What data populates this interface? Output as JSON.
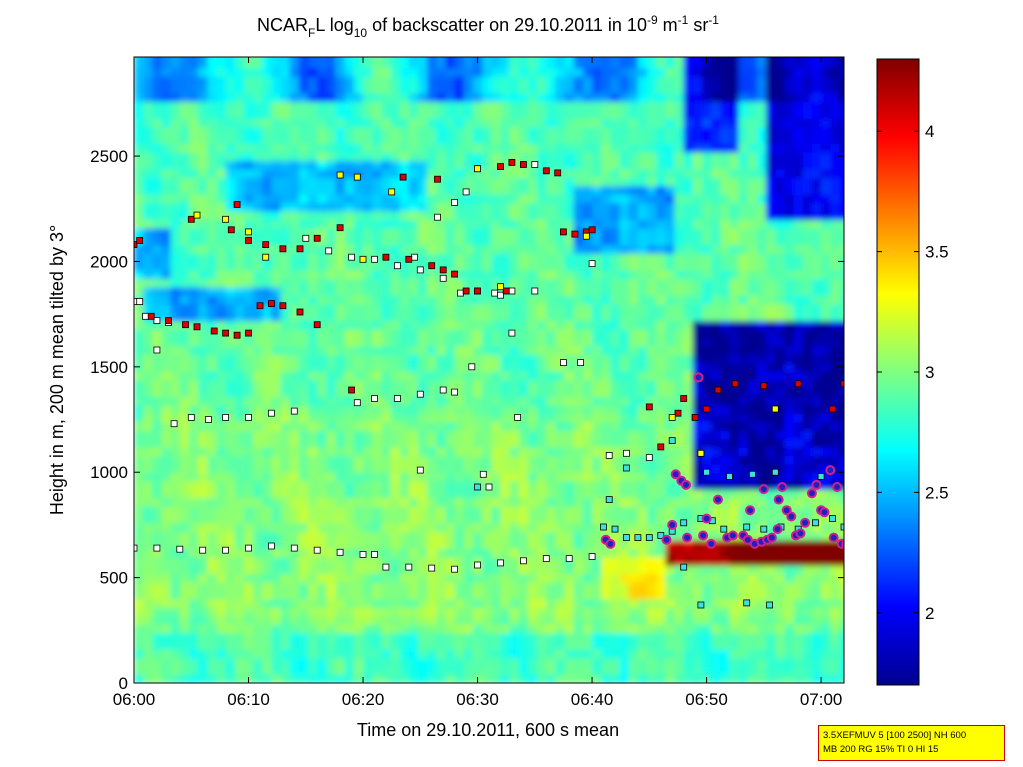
{
  "chart_data": {
    "type": "heatmap",
    "title": {
      "part1": "NCAR",
      "sub1": "F",
      "part2": "L log",
      "sub2": "10",
      "part3": " of backscatter on 29.10.2011 in 10",
      "sup1": "-9",
      "part4": " m",
      "sup2": "-1",
      "part5": " sr",
      "sup3": "-1"
    },
    "xlabel": "Time on 29.10.2011, 600 s mean",
    "ylabel": "Height in m, 200 m mean tilted by 3°",
    "x_ticks": [
      "06:00",
      "06:10",
      "06:20",
      "06:30",
      "06:40",
      "06:50",
      "07:00"
    ],
    "x_range_minutes": [
      0,
      62
    ],
    "y_ticks": [
      0,
      500,
      1000,
      1500,
      2000,
      2500
    ],
    "ylim": [
      0,
      2970
    ],
    "colorbar": {
      "ticks": [
        2,
        2.5,
        3,
        3.5,
        4
      ],
      "range": [
        1.7,
        4.3
      ],
      "colors": [
        "#00008f",
        "#0000ff",
        "#0080ff",
        "#00ffff",
        "#80ff80",
        "#ffff00",
        "#ff8000",
        "#ff0000",
        "#800000"
      ]
    },
    "layer_markers": {
      "white": [
        [
          0.0,
          1810
        ],
        [
          0.5,
          1810
        ],
        [
          1.0,
          1740
        ],
        [
          2.0,
          1720
        ],
        [
          3.0,
          1710
        ],
        [
          2.0,
          1580
        ],
        [
          3.5,
          1230
        ],
        [
          5.0,
          1260
        ],
        [
          6.5,
          1250
        ],
        [
          8.0,
          1260
        ],
        [
          10.0,
          1260
        ],
        [
          12.0,
          1280
        ],
        [
          14.0,
          1290
        ],
        [
          0.0,
          640
        ],
        [
          2.0,
          640
        ],
        [
          4.0,
          635
        ],
        [
          6.0,
          630
        ],
        [
          8.0,
          630
        ],
        [
          10.0,
          640
        ],
        [
          12.0,
          650
        ],
        [
          14.0,
          640
        ],
        [
          16.0,
          630
        ],
        [
          18.0,
          620
        ],
        [
          20.0,
          610
        ],
        [
          21.0,
          610
        ],
        [
          15.0,
          2110
        ],
        [
          17.0,
          2050
        ],
        [
          19.0,
          2020
        ],
        [
          21.0,
          2010
        ],
        [
          23.0,
          1980
        ],
        [
          25.0,
          1960
        ],
        [
          27.0,
          1920
        ],
        [
          28.5,
          1850
        ],
        [
          30.0,
          1860
        ],
        [
          31.5,
          1850
        ],
        [
          33.0,
          1860
        ],
        [
          35.0,
          1860
        ],
        [
          19.5,
          1330
        ],
        [
          21.0,
          1350
        ],
        [
          23.0,
          1350
        ],
        [
          25.0,
          1370
        ],
        [
          27.0,
          1390
        ],
        [
          28.0,
          1380
        ],
        [
          22.0,
          550
        ],
        [
          24.0,
          550
        ],
        [
          26.0,
          545
        ],
        [
          28.0,
          540
        ],
        [
          30.0,
          560
        ],
        [
          32.0,
          570
        ],
        [
          34.0,
          580
        ],
        [
          36.0,
          590
        ],
        [
          38.0,
          590
        ],
        [
          40.0,
          600
        ],
        [
          30.5,
          990
        ],
        [
          31.0,
          930
        ],
        [
          33.0,
          1660
        ],
        [
          33.5,
          1260
        ],
        [
          37.5,
          1520
        ],
        [
          39.0,
          1520
        ],
        [
          40.0,
          1990
        ],
        [
          41.5,
          1080
        ],
        [
          43.0,
          1090
        ],
        [
          45.0,
          1070
        ],
        [
          28.0,
          2280
        ],
        [
          29.0,
          2330
        ],
        [
          30.0,
          2440
        ],
        [
          35.0,
          2460
        ],
        [
          24.5,
          2020
        ],
        [
          26.5,
          2210
        ],
        [
          25.0,
          1010
        ],
        [
          32.0,
          1840
        ],
        [
          29.5,
          1500
        ]
      ],
      "red": [
        [
          0.0,
          2080
        ],
        [
          0.5,
          2100
        ],
        [
          1.5,
          1740
        ],
        [
          3.0,
          1720
        ],
        [
          4.5,
          1700
        ],
        [
          5.5,
          1690
        ],
        [
          7.0,
          1670
        ],
        [
          8.0,
          1660
        ],
        [
          9.0,
          1650
        ],
        [
          10.0,
          1660
        ],
        [
          11.0,
          1790
        ],
        [
          12.0,
          1800
        ],
        [
          13.0,
          1790
        ],
        [
          14.5,
          1760
        ],
        [
          16.0,
          1700
        ],
        [
          9.0,
          2270
        ],
        [
          5.0,
          2200
        ],
        [
          8.5,
          2150
        ],
        [
          10.0,
          2100
        ],
        [
          11.5,
          2080
        ],
        [
          13.0,
          2060
        ],
        [
          14.5,
          2060
        ],
        [
          16.0,
          2110
        ],
        [
          18.0,
          2160
        ],
        [
          22.0,
          2020
        ],
        [
          24.0,
          2010
        ],
        [
          26.0,
          1980
        ],
        [
          27.0,
          1960
        ],
        [
          28.0,
          1940
        ],
        [
          29.0,
          1860
        ],
        [
          30.0,
          1860
        ],
        [
          32.5,
          1860
        ],
        [
          23.5,
          2400
        ],
        [
          26.5,
          2390
        ],
        [
          32.0,
          2450
        ],
        [
          33.0,
          2470
        ],
        [
          34.0,
          2460
        ],
        [
          36.0,
          2430
        ],
        [
          37.0,
          2420
        ],
        [
          37.5,
          2140
        ],
        [
          38.5,
          2130
        ],
        [
          39.5,
          2140
        ],
        [
          40.0,
          2150
        ],
        [
          19.0,
          1390
        ],
        [
          45.0,
          1310
        ],
        [
          46.0,
          1120
        ],
        [
          47.5,
          1280
        ],
        [
          48.0,
          1350
        ],
        [
          49.0,
          1260
        ],
        [
          50.0,
          1300
        ],
        [
          51.0,
          1390
        ],
        [
          52.5,
          1420
        ],
        [
          55.0,
          1410
        ],
        [
          58.0,
          1420
        ],
        [
          61.0,
          1300
        ],
        [
          62.0,
          1420
        ]
      ],
      "yellow": [
        [
          5.5,
          2220
        ],
        [
          8.0,
          2200
        ],
        [
          10.0,
          2140
        ],
        [
          11.5,
          2020
        ],
        [
          18.0,
          2410
        ],
        [
          19.5,
          2400
        ],
        [
          20.0,
          2010
        ],
        [
          22.5,
          2330
        ],
        [
          30.0,
          2440
        ],
        [
          32.0,
          1880
        ],
        [
          39.5,
          2120
        ],
        [
          47.0,
          1260
        ],
        [
          49.5,
          1090
        ],
        [
          56.0,
          1300
        ]
      ],
      "cyan": [
        [
          41.0,
          740
        ],
        [
          42.0,
          730
        ],
        [
          43.0,
          690
        ],
        [
          44.0,
          690
        ],
        [
          45.0,
          690
        ],
        [
          46.0,
          700
        ],
        [
          47.0,
          720
        ],
        [
          48.0,
          760
        ],
        [
          49.5,
          780
        ],
        [
          50.5,
          770
        ],
        [
          51.5,
          730
        ],
        [
          53.5,
          740
        ],
        [
          55.0,
          730
        ],
        [
          56.5,
          740
        ],
        [
          58.0,
          730
        ],
        [
          59.5,
          760
        ],
        [
          61.0,
          780
        ],
        [
          62.0,
          740
        ],
        [
          48.0,
          550
        ],
        [
          49.5,
          370
        ],
        [
          53.5,
          380
        ],
        [
          55.5,
          370
        ],
        [
          50.0,
          1000
        ],
        [
          52.0,
          980
        ],
        [
          54.0,
          990
        ],
        [
          56.0,
          1000
        ],
        [
          60.0,
          980
        ],
        [
          47.0,
          1150
        ],
        [
          43.0,
          1020
        ],
        [
          41.5,
          870
        ],
        [
          30.0,
          930
        ]
      ],
      "purple": [
        [
          41.2,
          680
        ],
        [
          41.6,
          660
        ],
        [
          46.5,
          680
        ],
        [
          47.0,
          750
        ],
        [
          47.3,
          990
        ],
        [
          47.8,
          960
        ],
        [
          48.2,
          940
        ],
        [
          48.3,
          690
        ],
        [
          49.3,
          1450
        ],
        [
          49.7,
          700
        ],
        [
          50.0,
          780
        ],
        [
          50.4,
          660
        ],
        [
          51.0,
          870
        ],
        [
          51.8,
          690
        ],
        [
          52.3,
          700
        ],
        [
          53.2,
          700
        ],
        [
          53.6,
          680
        ],
        [
          54.2,
          660
        ],
        [
          54.8,
          670
        ],
        [
          55.3,
          680
        ],
        [
          55.7,
          690
        ],
        [
          56.2,
          730
        ],
        [
          56.3,
          870
        ],
        [
          56.6,
          930
        ],
        [
          57.0,
          820
        ],
        [
          57.4,
          790
        ],
        [
          57.8,
          700
        ],
        [
          58.2,
          710
        ],
        [
          58.6,
          760
        ],
        [
          59.2,
          900
        ],
        [
          59.6,
          940
        ],
        [
          60.0,
          820
        ],
        [
          60.3,
          810
        ],
        [
          60.8,
          1010
        ],
        [
          61.1,
          690
        ],
        [
          61.4,
          930
        ],
        [
          61.8,
          660
        ],
        [
          62.2,
          660
        ],
        [
          55.0,
          920
        ],
        [
          53.8,
          820
        ]
      ]
    }
  },
  "annotation": {
    "line1": "3.5XEFMUV 5 [100 2500] NH 600",
    "line2": "MB 200 RG 15% TI 0 HI 15"
  }
}
